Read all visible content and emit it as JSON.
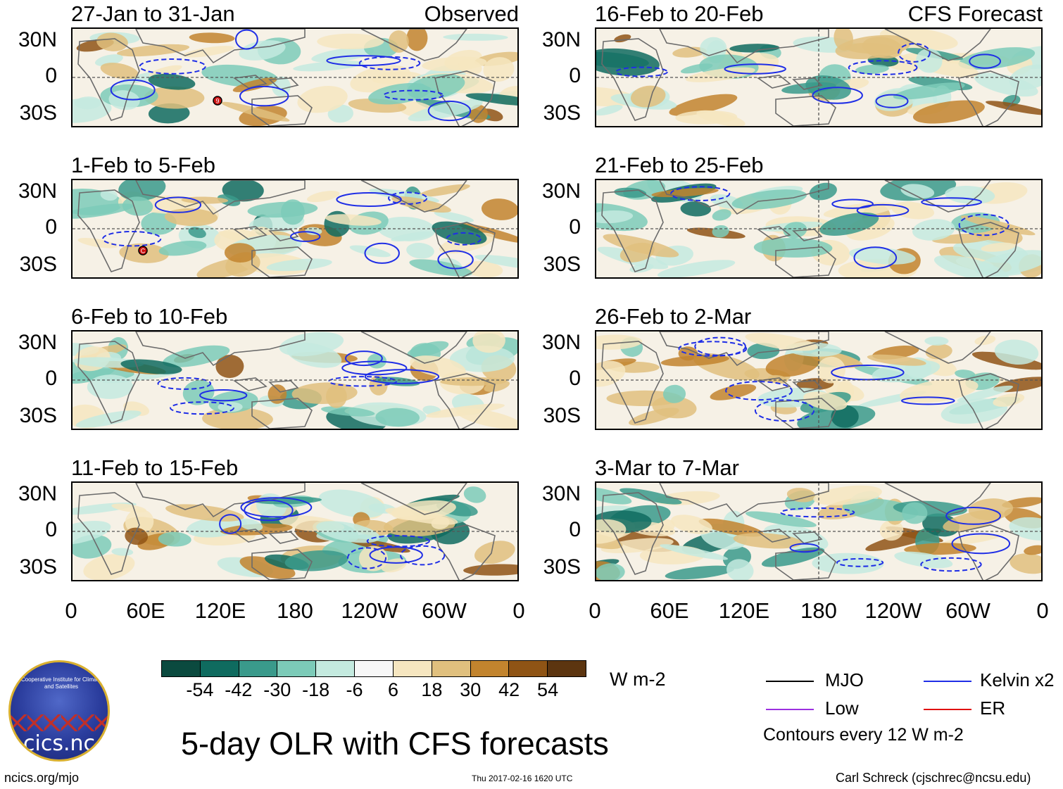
{
  "observed_label": "Observed",
  "forecast_label": "CFS Forecast",
  "panels": [
    {
      "title": "27-Jan to 31-Jan",
      "type": "observed"
    },
    {
      "title": "1-Feb to 5-Feb",
      "type": "observed"
    },
    {
      "title": "6-Feb to 10-Feb",
      "type": "observed"
    },
    {
      "title": "11-Feb to 15-Feb",
      "type": "observed"
    },
    {
      "title": "16-Feb to 20-Feb",
      "type": "forecast"
    },
    {
      "title": "21-Feb to 25-Feb",
      "type": "forecast"
    },
    {
      "title": "26-Feb to 2-Mar",
      "type": "forecast"
    },
    {
      "title": "3-Mar to 7-Mar",
      "type": "forecast"
    }
  ],
  "lat_labels": [
    "30N",
    "0",
    "30S"
  ],
  "lon_labels": [
    "0",
    "60E",
    "120E",
    "180",
    "120W",
    "60W",
    "0"
  ],
  "colorbar": {
    "labels": [
      "-54",
      "-42",
      "-30",
      "-18",
      "-6",
      "6",
      "18",
      "30",
      "42",
      "54"
    ],
    "colors": [
      "#0b4a3f",
      "#0f6b5f",
      "#3a9a8b",
      "#7ccbb8",
      "#c4eadf",
      "#f7f7f7",
      "#f6e6c0",
      "#e0c07e",
      "#c2842e",
      "#8f5415",
      "#5c3510"
    ],
    "units": "W m-2"
  },
  "legend": {
    "items": [
      {
        "label": "MJO",
        "color": "#000000"
      },
      {
        "label": "Kelvin x2",
        "color": "#1f2ee6"
      },
      {
        "label": "Low",
        "color": "#9b30e0"
      },
      {
        "label": "ER",
        "color": "#e01010"
      }
    ],
    "note": "Contours every 12 W m-2"
  },
  "storm_markers": [
    {
      "panel": 0,
      "label": "9"
    },
    {
      "panel": 1,
      "label": "C"
    }
  ],
  "logo_text": "cics.nc",
  "logo_ring_text": "Cooperative Institute for Climate and Satellites",
  "main_title": "5-day OLR with CFS forecasts",
  "footer": {
    "left": "ncics.org/mjo",
    "center": "Thu 2017-02-16 1620 UTC",
    "right": "Carl Schreck (cjschrec@ncsu.edu)"
  }
}
